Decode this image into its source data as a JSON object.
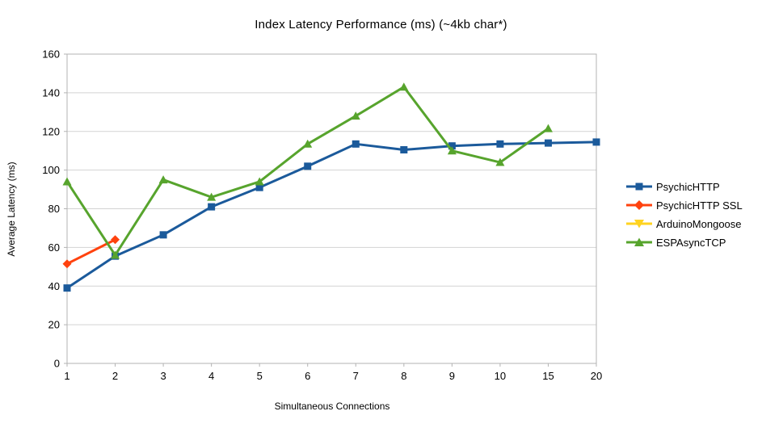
{
  "chart_data": {
    "type": "line",
    "title": "Index Latency Performance (ms) (~4kb char*)",
    "xlabel": "Simultaneous Connections",
    "ylabel": "Average Latency (ms)",
    "ylim": [
      0,
      160
    ],
    "y_ticks": [
      0,
      20,
      40,
      60,
      80,
      100,
      120,
      140,
      160
    ],
    "categories": [
      "1",
      "2",
      "3",
      "4",
      "5",
      "6",
      "7",
      "8",
      "9",
      "10",
      "15",
      "20"
    ],
    "grid": "horizontal",
    "legend_position": "right",
    "series": [
      {
        "name": "PsychicHTTP",
        "color": "#1b5a9b",
        "marker": "square",
        "values": [
          39,
          55.5,
          66.5,
          81,
          91,
          102,
          113.5,
          110.5,
          112.5,
          113.5,
          114,
          114.5
        ]
      },
      {
        "name": "PsychicHTTP SSL",
        "color": "#ff420e",
        "marker": "diamond",
        "values": [
          51.5,
          64,
          null,
          null,
          null,
          null,
          null,
          null,
          null,
          null,
          null,
          null
        ]
      },
      {
        "name": "ArduinoMongoose",
        "color": "#ffd320",
        "marker": "triangle-down",
        "values": [
          null,
          null,
          null,
          null,
          null,
          null,
          null,
          null,
          null,
          null,
          null,
          null
        ]
      },
      {
        "name": "ESPAsyncTCP",
        "color": "#57a42d",
        "marker": "triangle-up",
        "values": [
          94,
          56,
          95,
          86,
          94,
          113.5,
          128,
          143,
          110,
          104,
          121.5,
          null
        ]
      }
    ],
    "colors": {
      "gridline": "#d3d3d3",
      "axis": "#b3b3b3",
      "text": "#000000",
      "background": "#ffffff"
    }
  }
}
